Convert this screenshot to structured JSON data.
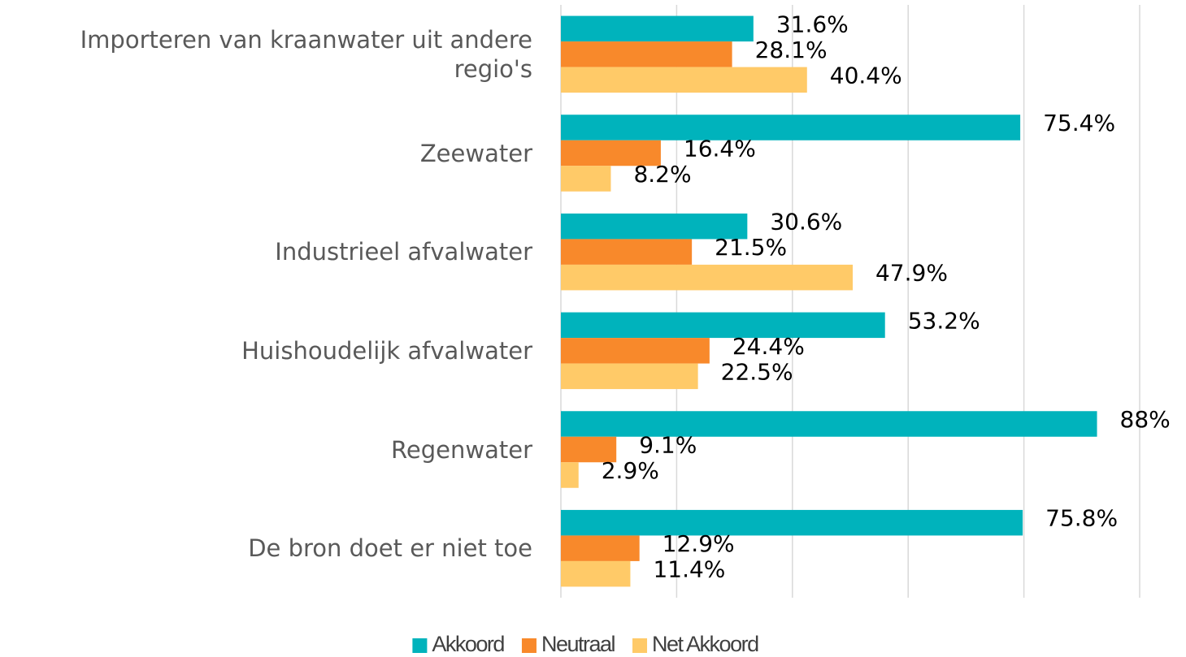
{
  "chart_data": {
    "type": "hbar",
    "categories": [
      "Importeren van kraanwater uit andere regio's",
      "Zeewater",
      "Industrieel afvalwater",
      "Huishoudelijk afvalwater",
      "Regenwater",
      "De bron doet er niet toe"
    ],
    "series": [
      {
        "name": "Akkoord",
        "color": "#00b3bc",
        "values": [
          31.6,
          75.4,
          30.6,
          53.2,
          88,
          75.8
        ],
        "value_labels": [
          "31.6%",
          "75.4%",
          "30.6%",
          "53.2%",
          "88%",
          "75.8%"
        ]
      },
      {
        "name": "Neutraal",
        "color": "#f8892b",
        "values": [
          28.1,
          16.4,
          21.5,
          24.4,
          9.1,
          12.9
        ],
        "value_labels": [
          "28.1%",
          "16.4%",
          "21.5%",
          "24.4%",
          "9.1%",
          "12.9%"
        ]
      },
      {
        "name": "Net Akkoord",
        "color": "#ffca68",
        "values": [
          40.4,
          8.2,
          47.9,
          22.5,
          2.9,
          11.4
        ],
        "value_labels": [
          "40.4%",
          "8.2%",
          "47.9%",
          "22.5%",
          "2.9%",
          "11.4%"
        ]
      }
    ],
    "xlim": [
      0,
      95
    ],
    "xticks": [
      0,
      19,
      38,
      57,
      76,
      95
    ],
    "grid": true,
    "legend": "bottom"
  }
}
